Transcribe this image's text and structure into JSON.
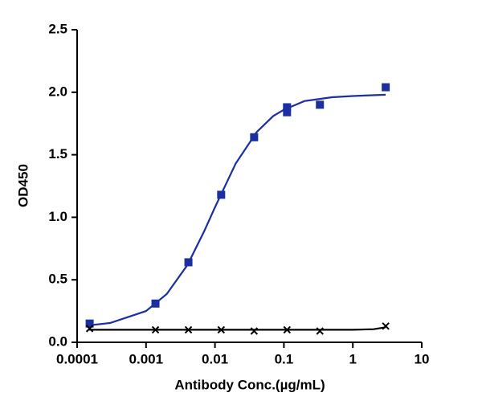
{
  "chart_data": {
    "type": "scatter",
    "xlabel": "Antibody Conc.(µg/mL)",
    "ylabel": "OD450",
    "xscale": "log",
    "xlim": [
      0.0001,
      10
    ],
    "ylim": [
      0,
      2.5
    ],
    "xticks": [
      0.0001,
      0.001,
      0.01,
      0.1,
      1,
      10
    ],
    "yticks": [
      {
        "value": 0,
        "label": "0.0"
      },
      {
        "value": 0.5,
        "label": "0.5"
      },
      {
        "value": 1,
        "label": "1.0"
      },
      {
        "value": 1.5,
        "label": "1.5"
      },
      {
        "value": 2,
        "label": "2.0"
      },
      {
        "value": 2.5,
        "label": "2.5"
      }
    ],
    "series": [
      {
        "color": "#1c2fa0",
        "marker": "square",
        "x": [
          0.000152,
          0.00137,
          0.00412,
          0.0123,
          0.037,
          0.111,
          0.111,
          0.333,
          3
        ],
        "values": [
          0.15,
          0.31,
          0.64,
          1.18,
          1.64,
          1.88,
          1.84,
          1.9,
          2.04
        ]
      },
      {
        "color": "#000000",
        "marker": "x",
        "x": [
          0.000152,
          0.00137,
          0.00412,
          0.0123,
          0.037,
          0.111,
          0.333,
          3
        ],
        "values": [
          0.11,
          0.1,
          0.1,
          0.1,
          0.09,
          0.1,
          0.09,
          0.13
        ]
      }
    ],
    "curves": [
      {
        "color": "#1c2fa0",
        "x": [
          0.00015,
          0.0003,
          0.001,
          0.002,
          0.004,
          0.007,
          0.01,
          0.02,
          0.04,
          0.07,
          0.1,
          0.2,
          0.5,
          1,
          3
        ],
        "values": [
          0.136,
          0.154,
          0.25,
          0.386,
          0.62,
          0.89,
          1.08,
          1.43,
          1.68,
          1.81,
          1.86,
          1.93,
          1.96,
          1.97,
          1.98
        ]
      },
      {
        "color": "#000000",
        "x": [
          0.00015,
          1,
          2,
          3
        ],
        "values": [
          0.1,
          0.1,
          0.105,
          0.12
        ]
      }
    ]
  }
}
